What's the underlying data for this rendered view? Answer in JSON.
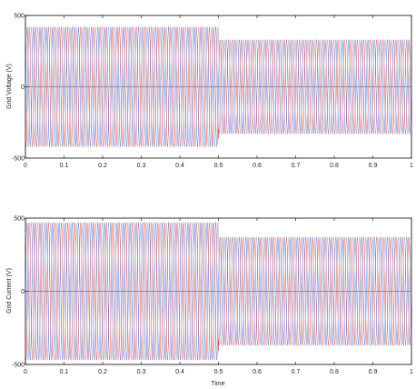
{
  "chart_data": [
    {
      "type": "line",
      "ylabel": "Grid Voltage (V)",
      "xlabel": "",
      "xlim": [
        0,
        1
      ],
      "ylim": [
        -500,
        500
      ],
      "xticks": [
        "0",
        "0.1",
        "0.2",
        "0.3",
        "0.4",
        "0.5",
        "0.6",
        "0.7",
        "0.8",
        "0.9",
        "1"
      ],
      "yticks": [
        "-500",
        "0",
        "500"
      ],
      "grid": false,
      "frequency_hz": 60,
      "series": [
        {
          "phase_deg": 0,
          "color": "#3355cc",
          "amplitude_segments": [
            {
              "t_start": 0,
              "t_end": 0.5,
              "amplitude": 420
            },
            {
              "t_start": 0.5,
              "t_end": 1,
              "amplitude": 330
            }
          ]
        },
        {
          "phase_deg": -120,
          "color": "#cc3333",
          "amplitude_segments": [
            {
              "t_start": 0,
              "t_end": 0.5,
              "amplitude": 420
            },
            {
              "t_start": 0.5,
              "t_end": 1,
              "amplitude": 330
            }
          ]
        },
        {
          "phase_deg": 120,
          "color": "#9a7ab0",
          "amplitude_segments": [
            {
              "t_start": 0,
              "t_end": 0.5,
              "amplitude": 420
            },
            {
              "t_start": 0.5,
              "t_end": 1,
              "amplitude": 330
            }
          ]
        }
      ]
    },
    {
      "type": "line",
      "ylabel": "Grid Current (V)",
      "xlabel": "Time",
      "xlim": [
        0,
        1
      ],
      "ylim": [
        -500,
        500
      ],
      "xticks": [
        "0",
        "0.1",
        "0.2",
        "0.3",
        "0.4",
        "0.5",
        "0.6",
        "0.7",
        "0.8",
        "0.9",
        "1"
      ],
      "yticks": [
        "-500",
        "0",
        "500"
      ],
      "grid": false,
      "frequency_hz": 60,
      "series": [
        {
          "phase_deg": 0,
          "color": "#3355cc",
          "amplitude_segments": [
            {
              "t_start": 0,
              "t_end": 0.5,
              "amplitude": 470
            },
            {
              "t_start": 0.5,
              "t_end": 1,
              "amplitude": 370
            }
          ]
        },
        {
          "phase_deg": -120,
          "color": "#cc3333",
          "amplitude_segments": [
            {
              "t_start": 0,
              "t_end": 0.5,
              "amplitude": 470
            },
            {
              "t_start": 0.5,
              "t_end": 1,
              "amplitude": 370
            }
          ]
        },
        {
          "phase_deg": 120,
          "color": "#9a7ab0",
          "amplitude_segments": [
            {
              "t_start": 0,
              "t_end": 0.5,
              "amplitude": 470
            },
            {
              "t_start": 0.5,
              "t_end": 1,
              "amplitude": 370
            }
          ]
        }
      ]
    }
  ]
}
